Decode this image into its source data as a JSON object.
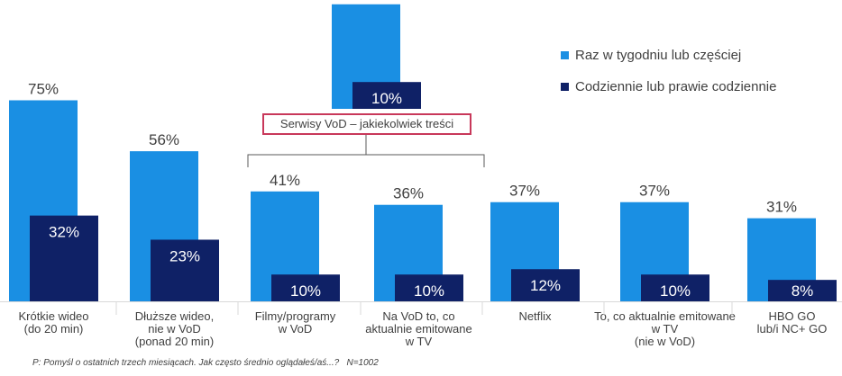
{
  "chart_data": {
    "type": "bar",
    "series": [
      {
        "name": "Raz w tygodniu lub częściej",
        "color": "#1a8fe3",
        "values": [
          75,
          56,
          39,
          41,
          36,
          37,
          37,
          31
        ]
      },
      {
        "name": "Codziennie lub prawie codziennie",
        "color": "#0f2166",
        "values": [
          32,
          23,
          10,
          10,
          10,
          12,
          10,
          8
        ]
      }
    ],
    "categories": [
      {
        "lines": [
          "Krótkie wideo",
          "(do 20 min)"
        ]
      },
      {
        "lines": [
          "Dłuższe wideo,",
          "nie w VoD",
          "(ponad 20 min)"
        ]
      },
      {
        "lines": []
      },
      {
        "lines": [
          "Filmy/programy",
          "w VoD"
        ]
      },
      {
        "lines": [
          "Na VoD to, co",
          "aktualnie emitowane",
          "w TV"
        ]
      },
      {
        "lines": [
          "Netflix"
        ]
      },
      {
        "lines": [
          "To, co aktualnie emitowane",
          "w TV",
          "(nie w VoD)"
        ]
      },
      {
        "lines": [
          "HBO GO",
          "lub/i NC+ GO"
        ]
      }
    ],
    "value_suffix": "%",
    "group_label": "Serwisy VoD – jakiekolwiek treści",
    "legend_position": "top-right",
    "grid": false
  },
  "footnote": "P: Pomyśl o ostatnich trzech miesiącach. Jak często średnio oglądałeś/aś...?   N=1002"
}
